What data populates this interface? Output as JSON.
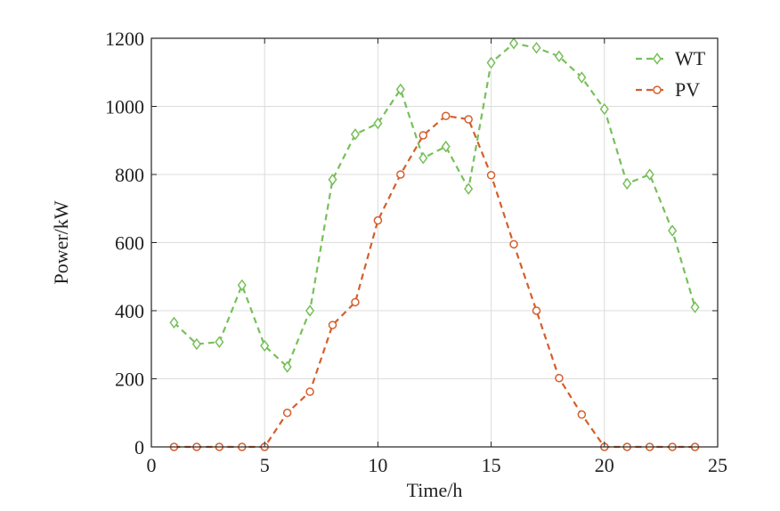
{
  "chart_data": {
    "type": "line",
    "title": "",
    "xlabel": "Time/h",
    "ylabel": "Power/kW",
    "xlim": [
      0,
      25
    ],
    "ylim": [
      0,
      1200
    ],
    "xticks": [
      0,
      5,
      10,
      15,
      20,
      25
    ],
    "yticks": [
      0,
      200,
      400,
      600,
      800,
      1000,
      1200
    ],
    "grid": true,
    "legend_position": "top-right",
    "x": [
      1,
      2,
      3,
      4,
      5,
      6,
      7,
      8,
      9,
      10,
      11,
      12,
      13,
      14,
      15,
      16,
      17,
      18,
      19,
      20,
      21,
      22,
      23,
      24
    ],
    "series": [
      {
        "name": "WT",
        "color": "#77c05a",
        "marker": "diamond",
        "line_style": "dashed",
        "values": [
          365,
          302,
          308,
          475,
          297,
          235,
          400,
          785,
          918,
          950,
          1050,
          848,
          882,
          758,
          1128,
          1185,
          1172,
          1147,
          1085,
          992,
          773,
          800,
          635,
          410
        ]
      },
      {
        "name": "PV",
        "color": "#d45f2c",
        "marker": "circle",
        "line_style": "dashed",
        "values": [
          0,
          0,
          0,
          0,
          0,
          100,
          162,
          358,
          425,
          665,
          800,
          915,
          972,
          962,
          798,
          595,
          400,
          202,
          95,
          0,
          0,
          0,
          0,
          0
        ]
      }
    ]
  }
}
